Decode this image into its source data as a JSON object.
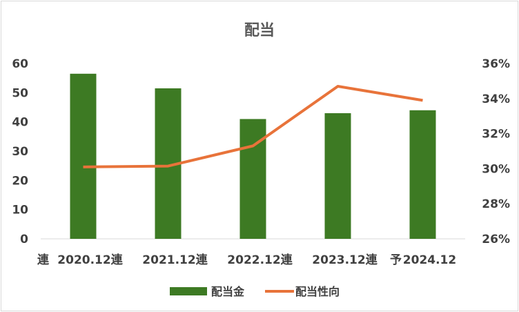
{
  "chart_data": {
    "type": "bar",
    "title": "配当",
    "categories": [
      "2020.12連",
      "2021.12連",
      "2022.12連",
      "2023.12連",
      "2024.12"
    ],
    "leading_label": "連",
    "forecast_prefix": "予",
    "series": [
      {
        "name": "配当金",
        "type": "bar",
        "axis": "left",
        "color": "#3d7a23",
        "values": [
          56.5,
          51.5,
          41,
          43,
          44
        ]
      },
      {
        "name": "配当性向",
        "type": "line",
        "axis": "right",
        "color": "#e8733a",
        "values": [
          30.1,
          30.15,
          31.3,
          34.7,
          33.9
        ]
      }
    ],
    "left_axis": {
      "ylim": [
        0,
        60
      ],
      "ticks": [
        0,
        10,
        20,
        30,
        40,
        50,
        60
      ]
    },
    "right_axis": {
      "ylim": [
        26,
        36
      ],
      "ticks": [
        26,
        28,
        30,
        32,
        34,
        36
      ],
      "unit": "%"
    },
    "grid": false,
    "legend": "bottom"
  }
}
